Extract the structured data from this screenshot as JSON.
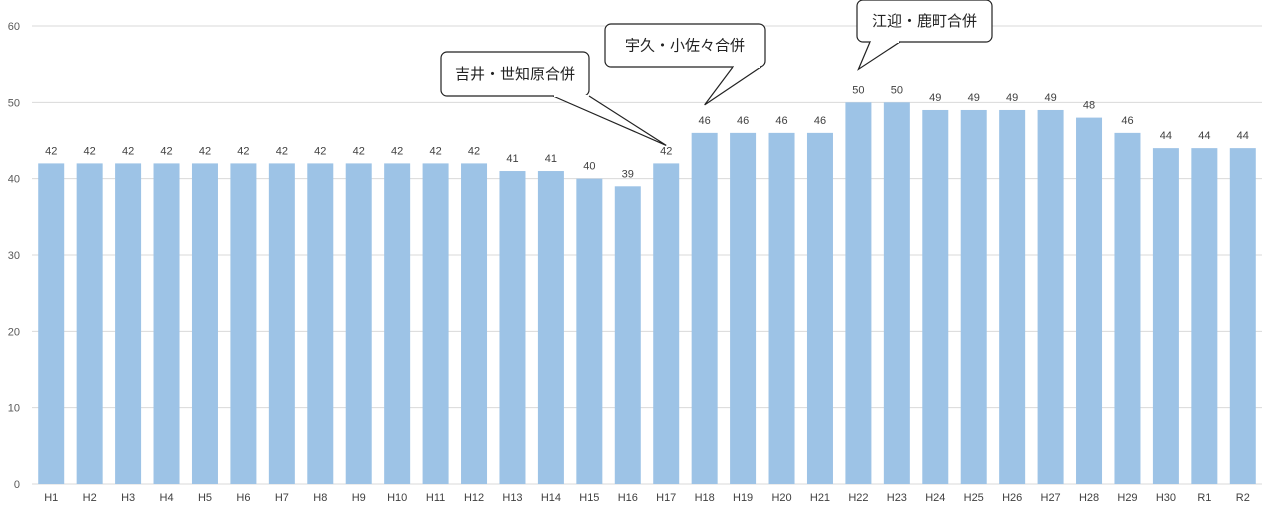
{
  "chart_data": {
    "type": "bar",
    "categories": [
      "H1",
      "H2",
      "H3",
      "H4",
      "H5",
      "H6",
      "H7",
      "H8",
      "H9",
      "H10",
      "H11",
      "H12",
      "H13",
      "H14",
      "H15",
      "H16",
      "H17",
      "H18",
      "H19",
      "H20",
      "H21",
      "H22",
      "H23",
      "H24",
      "H25",
      "H26",
      "H27",
      "H28",
      "H29",
      "H30",
      "R1",
      "R2"
    ],
    "values": [
      42,
      42,
      42,
      42,
      42,
      42,
      42,
      42,
      42,
      42,
      42,
      42,
      41,
      41,
      40,
      39,
      42,
      46,
      46,
      46,
      46,
      50,
      50,
      49,
      49,
      49,
      49,
      48,
      46,
      44,
      44,
      44
    ],
    "ylim": [
      0,
      60
    ],
    "yticks": [
      0,
      10,
      20,
      30,
      40,
      50,
      60
    ],
    "grid": true,
    "bar_color": "#9DC3E6",
    "grid_color": "#D9D9D9",
    "annotations": [
      {
        "text": "吉井・世知原合併",
        "category": "H17"
      },
      {
        "text": "宇久・小佐々合併",
        "category": "H18"
      },
      {
        "text": "江迎・鹿町合併",
        "category": "H22"
      }
    ]
  }
}
